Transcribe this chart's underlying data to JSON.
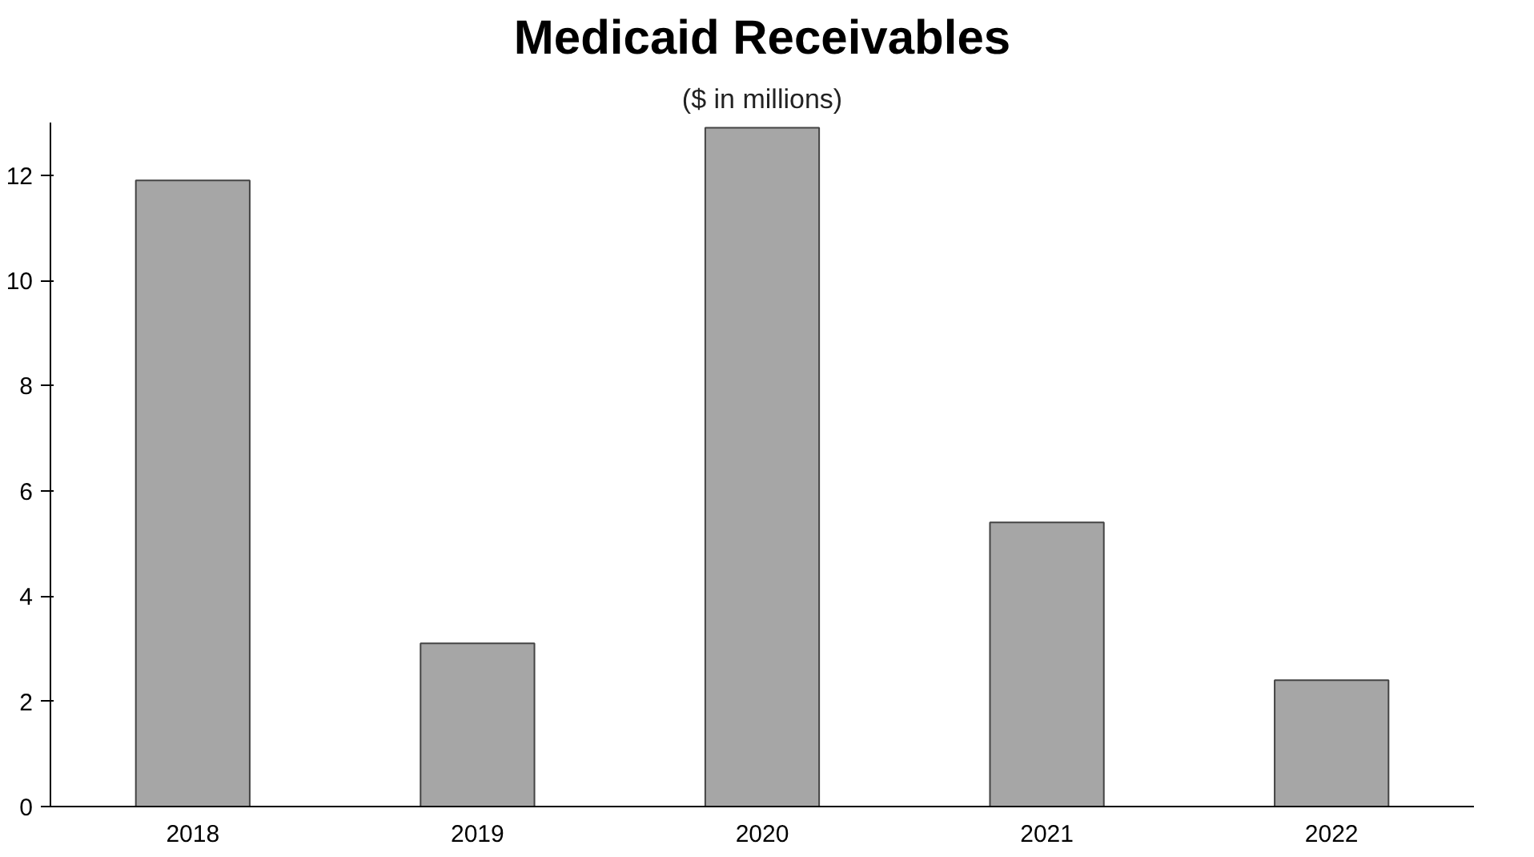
{
  "chart_data": {
    "type": "bar",
    "title": "Medicaid Receivables",
    "subtitle": "($ in millions)",
    "categories": [
      "2018",
      "2019",
      "2020",
      "2021",
      "2022"
    ],
    "values": [
      11.9,
      3.1,
      12.9,
      5.4,
      2.4
    ],
    "color": "#a6a6a6",
    "ylim": [
      0,
      13
    ],
    "yticks": [
      0,
      2,
      4,
      6,
      8,
      10,
      12
    ],
    "grid": false
  }
}
